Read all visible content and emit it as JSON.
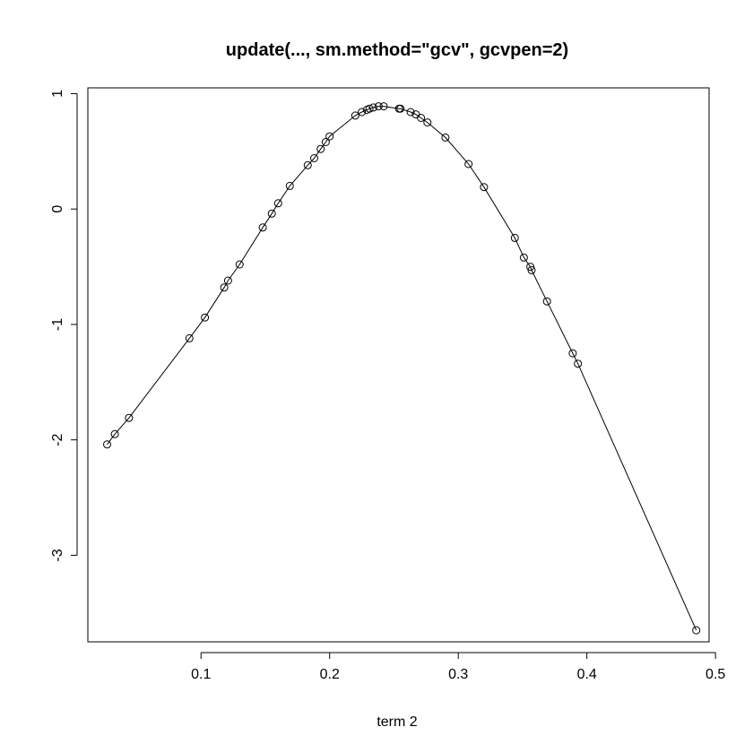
{
  "chart_data": {
    "type": "line",
    "title": "update(..., sm.method=\"gcv\", gcvpen=2)",
    "xlabel": "term 2",
    "ylabel": "",
    "xlim": [
      0.012,
      0.495
    ],
    "ylim": [
      -3.75,
      1.05
    ],
    "xticks": [
      0.1,
      0.2,
      0.3,
      0.4,
      0.5
    ],
    "xtick_labels": [
      "0.1",
      "0.2",
      "0.3",
      "0.4",
      "0.5"
    ],
    "yticks": [
      -3,
      -2,
      -1,
      0,
      1
    ],
    "ytick_labels": [
      "-3",
      "-2",
      "-1",
      "0",
      "1"
    ],
    "grid": false,
    "legend": "none",
    "markers": "open-circle",
    "line_color": "#000000",
    "series": [
      {
        "x": [
          0.027,
          0.033,
          0.044,
          0.091,
          0.103,
          0.118,
          0.121,
          0.13,
          0.148,
          0.155,
          0.16,
          0.169,
          0.183,
          0.188,
          0.193,
          0.197,
          0.2,
          0.22,
          0.225,
          0.229,
          0.231,
          0.234,
          0.238,
          0.242,
          0.254,
          0.255,
          0.263,
          0.267,
          0.271,
          0.276,
          0.29,
          0.308,
          0.32,
          0.344,
          0.351,
          0.356,
          0.357,
          0.369,
          0.389,
          0.393,
          0.485
        ],
        "y": [
          -2.04,
          -1.95,
          -1.81,
          -1.12,
          -0.94,
          -0.68,
          -0.62,
          -0.48,
          -0.16,
          -0.04,
          0.05,
          0.2,
          0.38,
          0.44,
          0.52,
          0.58,
          0.63,
          0.81,
          0.84,
          0.86,
          0.87,
          0.88,
          0.89,
          0.89,
          0.87,
          0.87,
          0.84,
          0.82,
          0.79,
          0.75,
          0.62,
          0.39,
          0.19,
          -0.25,
          -0.42,
          -0.5,
          -0.53,
          -0.8,
          -1.25,
          -1.34,
          -3.65
        ]
      }
    ]
  }
}
